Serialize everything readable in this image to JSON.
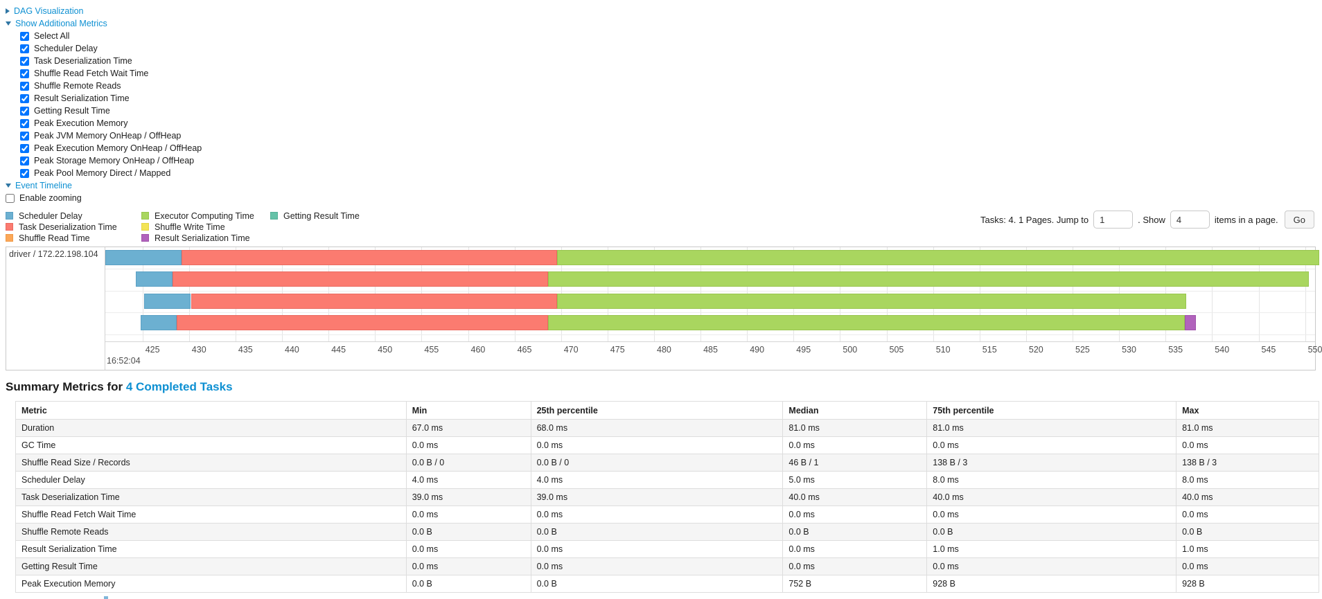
{
  "panels": {
    "dag": {
      "label": "DAG Visualization"
    },
    "metrics": {
      "label": "Show Additional Metrics",
      "options": [
        "Select All",
        "Scheduler Delay",
        "Task Deserialization Time",
        "Shuffle Read Fetch Wait Time",
        "Shuffle Remote Reads",
        "Result Serialization Time",
        "Getting Result Time",
        "Peak Execution Memory",
        "Peak JVM Memory OnHeap / OffHeap",
        "Peak Execution Memory OnHeap / OffHeap",
        "Peak Storage Memory OnHeap / OffHeap",
        "Peak Pool Memory Direct / Mapped"
      ]
    },
    "timeline": {
      "label": "Event Timeline",
      "enable_zooming": "Enable zooming"
    }
  },
  "legend": {
    "columns": [
      [
        {
          "key": "scheduler-delay",
          "label": "Scheduler Delay"
        },
        {
          "key": "task-deserialization",
          "label": "Task Deserialization Time"
        },
        {
          "key": "shuffle-read",
          "label": "Shuffle Read Time"
        }
      ],
      [
        {
          "key": "executor-computing",
          "label": "Executor Computing Time"
        },
        {
          "key": "shuffle-write",
          "label": "Shuffle Write Time"
        },
        {
          "key": "result-serialization",
          "label": "Result Serialization Time"
        }
      ],
      [
        {
          "key": "getting-result",
          "label": "Getting Result Time"
        }
      ]
    ]
  },
  "pagination": {
    "tasks_text": "Tasks: 4. 1 Pages. Jump to",
    "jump_value": "1",
    "show_label": ". Show",
    "show_value": "4",
    "items_label": "items in a page.",
    "go_label": "Go"
  },
  "chart_data": {
    "type": "timeline-gantt",
    "group_label": "driver / 172.22.198.104",
    "axis": {
      "min": 421,
      "max": 551,
      "tick_start": 425,
      "tick_end": 550,
      "tick_step": 5,
      "unit": "ms within second",
      "major_label": "16:52:04"
    },
    "colors": {
      "scheduler-delay": {
        "fill": "#6cb0d1",
        "border": "#5aa0c4"
      },
      "task-deserialization": {
        "fill": "#fb7b70",
        "border": "#ea6a60"
      },
      "shuffle-read": {
        "fill": "#fca758",
        "border": "#ef9a47"
      },
      "executor-computing": {
        "fill": "#a9d65f",
        "border": "#98c54e"
      },
      "shuffle-write": {
        "fill": "#f3e455",
        "border": "#e3d445"
      },
      "result-serialization": {
        "fill": "#b163bc",
        "border": "#a052ab"
      },
      "getting-result": {
        "fill": "#65c2a8",
        "border": "#54b198"
      }
    },
    "tasks": [
      {
        "segments": [
          {
            "metric": "scheduler-delay",
            "start": 421.0,
            "end": 429.2
          },
          {
            "metric": "task-deserialization",
            "start": 429.2,
            "end": 469.6
          },
          {
            "metric": "executor-computing",
            "start": 469.6,
            "end": 551.5
          }
        ]
      },
      {
        "segments": [
          {
            "metric": "scheduler-delay",
            "start": 424.3,
            "end": 428.2
          },
          {
            "metric": "task-deserialization",
            "start": 428.2,
            "end": 468.6
          },
          {
            "metric": "executor-computing",
            "start": 468.6,
            "end": 550.4
          }
        ]
      },
      {
        "segments": [
          {
            "metric": "scheduler-delay",
            "start": 425.2,
            "end": 430.2
          },
          {
            "metric": "task-deserialization",
            "start": 430.2,
            "end": 469.6
          },
          {
            "metric": "executor-computing",
            "start": 469.6,
            "end": 537.2
          }
        ]
      },
      {
        "segments": [
          {
            "metric": "scheduler-delay",
            "start": 424.8,
            "end": 428.7
          },
          {
            "metric": "task-deserialization",
            "start": 428.7,
            "end": 468.6
          },
          {
            "metric": "executor-computing",
            "start": 468.6,
            "end": 537.1
          },
          {
            "metric": "result-serialization",
            "start": 537.1,
            "end": 538.3
          }
        ]
      }
    ]
  },
  "summary": {
    "title_prefix": "Summary Metrics for",
    "title_link": "4 Completed Tasks",
    "table": {
      "headers": [
        "Metric",
        "Min",
        "25th percentile",
        "Median",
        "75th percentile",
        "Max"
      ],
      "rows": [
        {
          "metric": "Duration",
          "values": [
            "67.0 ms",
            "68.0 ms",
            "81.0 ms",
            "81.0 ms",
            "81.0 ms"
          ]
        },
        {
          "metric": "GC Time",
          "values": [
            "0.0 ms",
            "0.0 ms",
            "0.0 ms",
            "0.0 ms",
            "0.0 ms"
          ]
        },
        {
          "metric": "Shuffle Read Size / Records",
          "values": [
            "0.0 B / 0",
            "0.0 B / 0",
            "46 B / 1",
            "138 B / 3",
            "138 B / 3"
          ]
        },
        {
          "metric": "Scheduler Delay",
          "values": [
            "4.0 ms",
            "4.0 ms",
            "5.0 ms",
            "8.0 ms",
            "8.0 ms"
          ]
        },
        {
          "metric": "Task Deserialization Time",
          "values": [
            "39.0 ms",
            "39.0 ms",
            "40.0 ms",
            "40.0 ms",
            "40.0 ms"
          ]
        },
        {
          "metric": "Shuffle Read Fetch Wait Time",
          "values": [
            "0.0 ms",
            "0.0 ms",
            "0.0 ms",
            "0.0 ms",
            "0.0 ms"
          ]
        },
        {
          "metric": "Shuffle Remote Reads",
          "values": [
            "0.0 B",
            "0.0 B",
            "0.0 B",
            "0.0 B",
            "0.0 B"
          ]
        },
        {
          "metric": "Result Serialization Time",
          "values": [
            "0.0 ms",
            "0.0 ms",
            "0.0 ms",
            "1.0 ms",
            "1.0 ms"
          ]
        },
        {
          "metric": "Getting Result Time",
          "values": [
            "0.0 ms",
            "0.0 ms",
            "0.0 ms",
            "0.0 ms",
            "0.0 ms"
          ]
        },
        {
          "metric": "Peak Execution Memory",
          "values": [
            "0.0 B",
            "0.0 B",
            "752 B",
            "928 B",
            "928 B"
          ]
        }
      ]
    }
  }
}
